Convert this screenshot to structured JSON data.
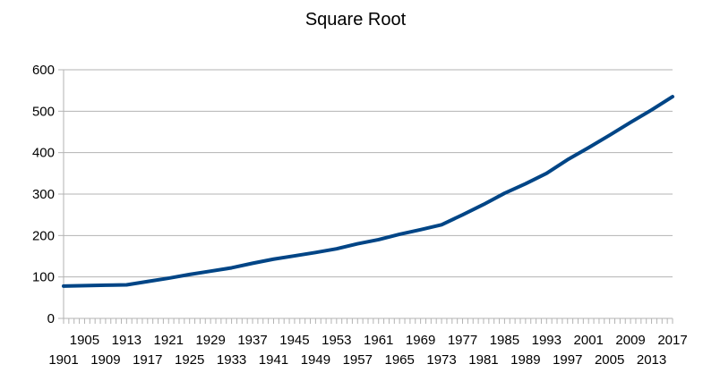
{
  "chart_data": {
    "type": "line",
    "title": "Square Root",
    "xlabel": "",
    "ylabel": "",
    "ylim": [
      0,
      600
    ],
    "y_ticks": [
      0,
      100,
      200,
      300,
      400,
      500,
      600
    ],
    "x_range": [
      1901,
      2017
    ],
    "x_tick_labels_top_row": [
      "1905",
      "1913",
      "1921",
      "1929",
      "1937",
      "1945",
      "1953",
      "1961",
      "1969",
      "1977",
      "1985",
      "1993",
      "2001",
      "2009",
      "2017"
    ],
    "x_tick_labels_bottom_row": [
      "1901",
      "1909",
      "1917",
      "1925",
      "1933",
      "1941",
      "1949",
      "1957",
      "1965",
      "1973",
      "1981",
      "1989",
      "1997",
      "2005",
      "2013"
    ],
    "grid": "horizontal",
    "legend": "none",
    "colors": {
      "line": "#004586",
      "grid": "#b3b3b3",
      "axis": "#b3b3b3"
    },
    "series": [
      {
        "x": [
          1901,
          1905,
          1909,
          1913,
          1917,
          1921,
          1925,
          1929,
          1933,
          1937,
          1941,
          1945,
          1949,
          1953,
          1957,
          1961,
          1965,
          1969,
          1973,
          1977,
          1981,
          1985,
          1989,
          1993,
          1997,
          2001,
          2005,
          2009,
          2013,
          2017
        ],
        "values": [
          78,
          79,
          80,
          81,
          89,
          97,
          106,
          114,
          122,
          133,
          143,
          151,
          159,
          168,
          180,
          190,
          203,
          214,
          226,
          250,
          275,
          302,
          325,
          350,
          383,
          412,
          442,
          473,
          503,
          535
        ]
      }
    ]
  }
}
